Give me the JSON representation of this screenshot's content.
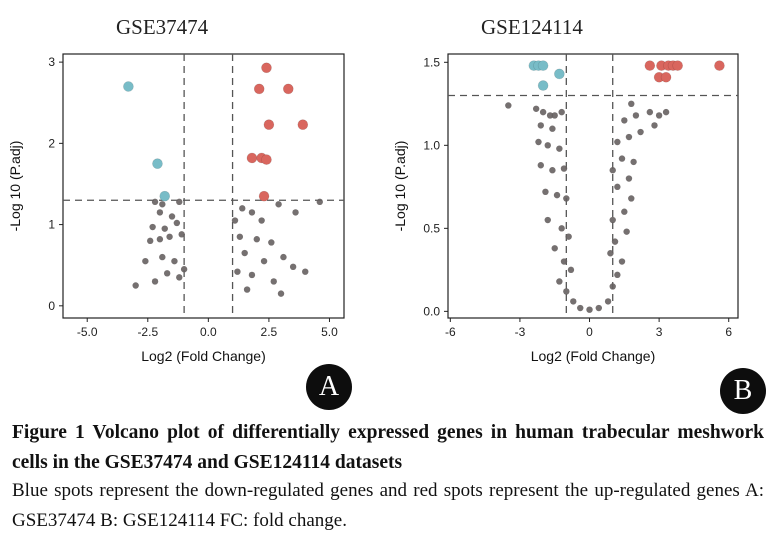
{
  "figure": {
    "caption_title": "Figure 1 Volcano plot of differentially expressed genes in human trabecular meshwork cells in the GSE37474 and GSE124114 datasets",
    "caption_body": "Blue spots represent the down-regulated genes and red spots represent the up-regulated genes A: GSE37474 B: GSE124114 FC: fold change."
  },
  "colors": {
    "up": "#d9665e",
    "down": "#78bcc7",
    "ns": "#666060",
    "axis": "#222222",
    "badge": "#0d0d0d"
  },
  "chart_data": [
    {
      "type": "scatter",
      "panel_label": "A",
      "title": "GSE37474",
      "xlabel": "Log2 (Fold Change)",
      "ylabel": "-Log 10 (P.adj)",
      "xlim": [
        -6,
        5.6
      ],
      "ylim": [
        -0.15,
        3.1
      ],
      "xticks": [
        -5.0,
        -2.5,
        0.0,
        2.5,
        5.0
      ],
      "xtick_labels": [
        "-5.0",
        "-2.5",
        "0.0",
        "2.5",
        "5.0"
      ],
      "yticks": [
        0,
        1,
        2,
        3
      ],
      "ytick_labels": [
        "0",
        "1",
        "2",
        "3"
      ],
      "thresholds": {
        "log2fc": [
          -1,
          1
        ],
        "neg_log10_padj": 1.3
      },
      "grid": false,
      "series": [
        {
          "group": "down",
          "points": [
            [
              -3.3,
              2.7
            ],
            [
              -2.1,
              1.75
            ],
            [
              -1.8,
              1.35
            ]
          ]
        },
        {
          "group": "up",
          "points": [
            [
              2.4,
              2.93
            ],
            [
              2.1,
              2.67
            ],
            [
              3.3,
              2.67
            ],
            [
              2.5,
              2.23
            ],
            [
              3.9,
              2.23
            ],
            [
              1.8,
              1.82
            ],
            [
              2.2,
              1.82
            ],
            [
              2.4,
              1.8
            ],
            [
              2.3,
              1.35
            ]
          ]
        },
        {
          "group": "ns",
          "points": [
            [
              -2.2,
              1.28
            ],
            [
              -1.9,
              1.25
            ],
            [
              -1.2,
              1.28
            ],
            [
              -2.0,
              1.15
            ],
            [
              -1.5,
              1.1
            ],
            [
              -2.3,
              0.97
            ],
            [
              -1.8,
              0.95
            ],
            [
              -1.3,
              1.02
            ],
            [
              -2.4,
              0.8
            ],
            [
              -2.0,
              0.82
            ],
            [
              -1.6,
              0.85
            ],
            [
              -1.1,
              0.88
            ],
            [
              -2.6,
              0.55
            ],
            [
              -1.9,
              0.6
            ],
            [
              -1.4,
              0.55
            ],
            [
              -3.0,
              0.25
            ],
            [
              -2.2,
              0.3
            ],
            [
              -1.7,
              0.4
            ],
            [
              -1.2,
              0.35
            ],
            [
              -1.0,
              0.45
            ],
            [
              1.1,
              1.05
            ],
            [
              1.4,
              1.2
            ],
            [
              1.8,
              1.15
            ],
            [
              2.2,
              1.05
            ],
            [
              2.9,
              1.25
            ],
            [
              3.6,
              1.15
            ],
            [
              4.6,
              1.28
            ],
            [
              1.3,
              0.85
            ],
            [
              2.0,
              0.82
            ],
            [
              2.6,
              0.78
            ],
            [
              3.1,
              0.6
            ],
            [
              1.5,
              0.65
            ],
            [
              2.3,
              0.55
            ],
            [
              3.5,
              0.48
            ],
            [
              1.2,
              0.42
            ],
            [
              1.8,
              0.38
            ],
            [
              2.7,
              0.3
            ],
            [
              4.0,
              0.42
            ],
            [
              1.6,
              0.2
            ],
            [
              3.0,
              0.15
            ]
          ]
        }
      ]
    },
    {
      "type": "scatter",
      "panel_label": "B",
      "title": "GSE124114",
      "xlabel": "Log2 (Fold Change)",
      "ylabel": "-Log 10 (P.adj)",
      "xlim": [
        -6.1,
        6.4
      ],
      "ylim": [
        -0.04,
        1.55
      ],
      "xticks": [
        -6,
        -3,
        0,
        3,
        6
      ],
      "xtick_labels": [
        "-6",
        "-3",
        "0",
        "3",
        "6"
      ],
      "yticks": [
        0.0,
        0.5,
        1.0,
        1.5
      ],
      "ytick_labels": [
        "0.0",
        "0.5",
        "1.0",
        "1.5"
      ],
      "thresholds": {
        "log2fc": [
          -1,
          1
        ],
        "neg_log10_padj": 1.3
      },
      "grid": false,
      "series": [
        {
          "group": "down",
          "points": [
            [
              -2.4,
              1.48
            ],
            [
              -2.2,
              1.48
            ],
            [
              -2.0,
              1.48
            ],
            [
              -1.3,
              1.43
            ],
            [
              -2.0,
              1.36
            ]
          ]
        },
        {
          "group": "up",
          "points": [
            [
              2.6,
              1.48
            ],
            [
              3.1,
              1.48
            ],
            [
              3.4,
              1.48
            ],
            [
              3.6,
              1.48
            ],
            [
              3.8,
              1.48
            ],
            [
              5.6,
              1.48
            ],
            [
              3.0,
              1.41
            ],
            [
              3.3,
              1.41
            ]
          ]
        },
        {
          "group": "ns",
          "points": [
            [
              -3.5,
              1.24
            ],
            [
              -2.3,
              1.22
            ],
            [
              -2.0,
              1.2
            ],
            [
              -1.7,
              1.18
            ],
            [
              -1.5,
              1.18
            ],
            [
              -1.2,
              1.2
            ],
            [
              -2.1,
              1.12
            ],
            [
              -1.6,
              1.1
            ],
            [
              -2.2,
              1.02
            ],
            [
              -1.8,
              1.0
            ],
            [
              -1.3,
              0.98
            ],
            [
              -2.1,
              0.88
            ],
            [
              -1.6,
              0.85
            ],
            [
              -1.1,
              0.86
            ],
            [
              -1.9,
              0.72
            ],
            [
              -1.4,
              0.7
            ],
            [
              -1.0,
              0.68
            ],
            [
              -1.8,
              0.55
            ],
            [
              -1.2,
              0.5
            ],
            [
              -0.9,
              0.45
            ],
            [
              -1.5,
              0.38
            ],
            [
              -1.1,
              0.3
            ],
            [
              -0.8,
              0.25
            ],
            [
              -1.3,
              0.18
            ],
            [
              -1.0,
              0.12
            ],
            [
              -0.7,
              0.06
            ],
            [
              -0.4,
              0.02
            ],
            [
              0.0,
              0.01
            ],
            [
              0.4,
              0.02
            ],
            [
              0.8,
              0.06
            ],
            [
              1.0,
              0.15
            ],
            [
              1.2,
              0.22
            ],
            [
              1.4,
              0.3
            ],
            [
              0.9,
              0.35
            ],
            [
              1.1,
              0.42
            ],
            [
              1.6,
              0.48
            ],
            [
              1.0,
              0.55
            ],
            [
              1.5,
              0.6
            ],
            [
              1.8,
              0.68
            ],
            [
              1.2,
              0.75
            ],
            [
              1.7,
              0.8
            ],
            [
              1.0,
              0.85
            ],
            [
              1.4,
              0.92
            ],
            [
              1.9,
              0.9
            ],
            [
              1.2,
              1.02
            ],
            [
              1.7,
              1.05
            ],
            [
              2.2,
              1.08
            ],
            [
              1.5,
              1.15
            ],
            [
              2.0,
              1.18
            ],
            [
              2.6,
              1.2
            ],
            [
              3.0,
              1.18
            ],
            [
              3.3,
              1.2
            ],
            [
              2.8,
              1.12
            ],
            [
              1.8,
              1.25
            ]
          ]
        }
      ]
    }
  ]
}
